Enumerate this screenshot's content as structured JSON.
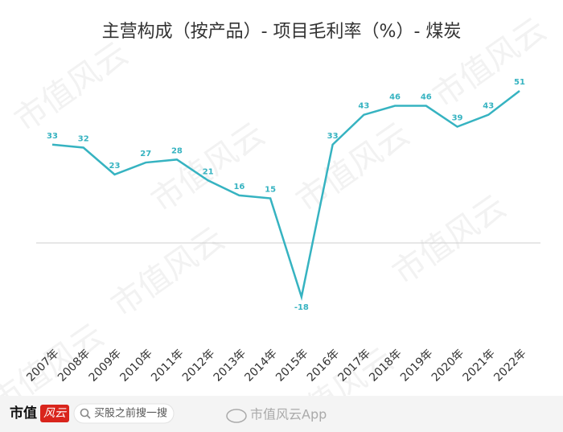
{
  "chart_data": {
    "type": "line",
    "title": "主营构成（按产品）- 项目毛利率（%）- 煤炭",
    "categories": [
      "2007年",
      "2008年",
      "2009年",
      "2010年",
      "2011年",
      "2012年",
      "2013年",
      "2014年",
      "2015年",
      "2016年",
      "2017年",
      "2018年",
      "2019年",
      "2020年",
      "2021年",
      "2022年"
    ],
    "values": [
      33,
      32,
      23,
      27,
      28,
      21,
      16,
      15,
      -18,
      33,
      43,
      46,
      46,
      39,
      43,
      51
    ],
    "color": "#36b3c1"
  },
  "watermark": "市值风云",
  "footer": {
    "logo": "市值",
    "logo_badge": "风云",
    "search": "买股之前搜一搜",
    "weibo": "市值风云App"
  }
}
